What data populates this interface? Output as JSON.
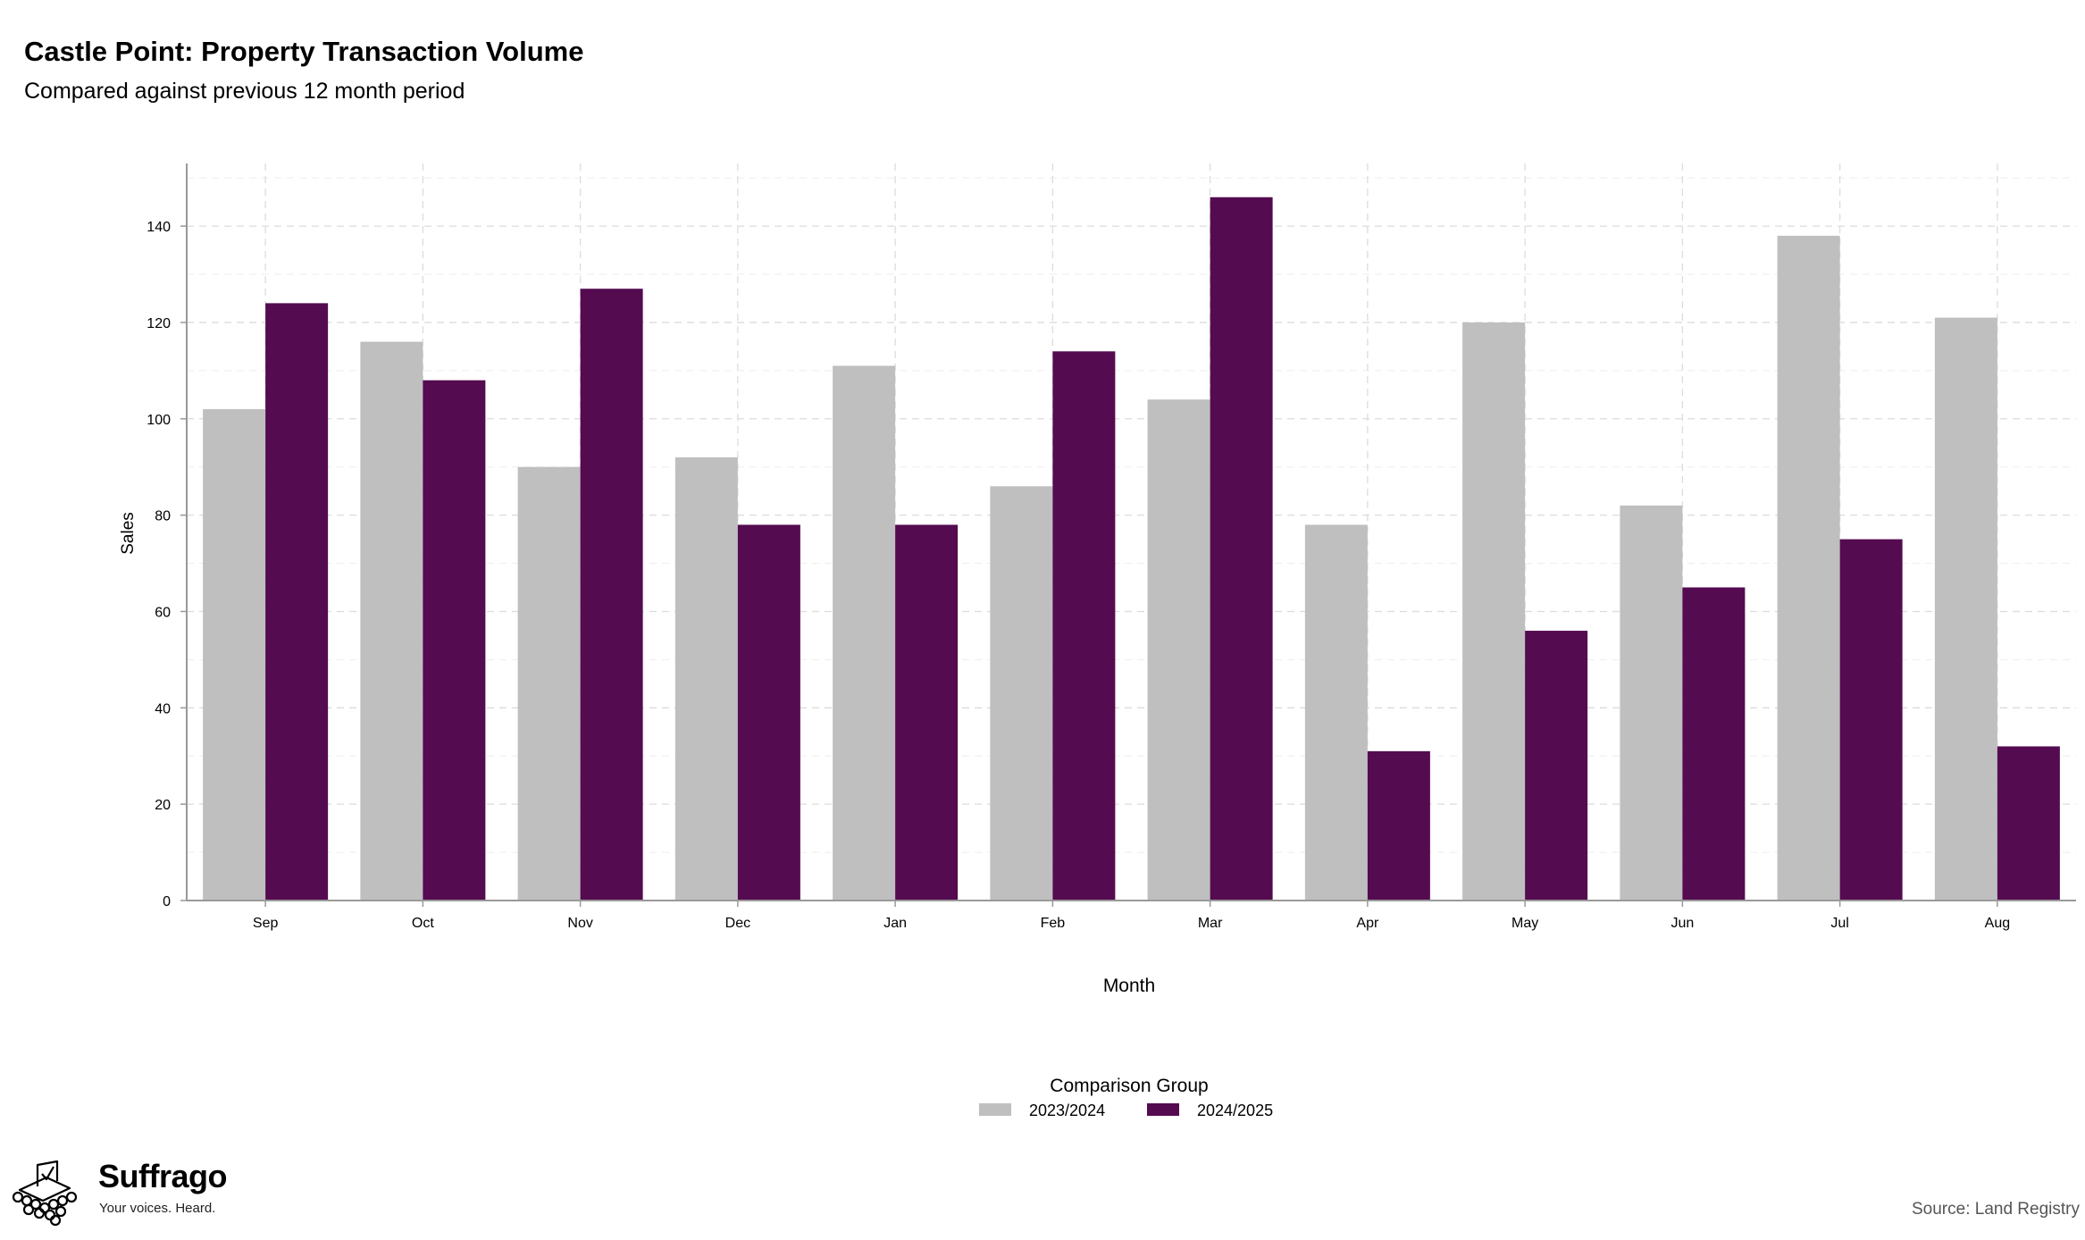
{
  "header": {
    "title": "Castle Point: Property Transaction Volume",
    "subtitle": "Compared against previous 12 month period"
  },
  "chart_data": {
    "type": "bar",
    "categories": [
      "Sep",
      "Oct",
      "Nov",
      "Dec",
      "Jan",
      "Feb",
      "Mar",
      "Apr",
      "May",
      "Jun",
      "Jul",
      "Aug"
    ],
    "series": [
      {
        "name": "2023/2024",
        "color": "#bfbfbf",
        "values": [
          102,
          116,
          90,
          92,
          111,
          86,
          104,
          78,
          120,
          82,
          138,
          121
        ]
      },
      {
        "name": "2024/2025",
        "color": "#540b50",
        "values": [
          124,
          108,
          127,
          78,
          78,
          114,
          146,
          31,
          56,
          65,
          75,
          32
        ]
      }
    ],
    "xlabel": "Month",
    "ylabel": "Sales",
    "ylim": [
      0,
      153
    ],
    "yticks": [
      0,
      20,
      40,
      60,
      80,
      100,
      120,
      140
    ],
    "grid": true,
    "legend": {
      "title": "Comparison Group",
      "placement": "bottom-center"
    }
  },
  "footer": {
    "source": "Source: Land Registry",
    "brand_name": "Suffrago",
    "brand_tagline": "Your voices. Heard."
  }
}
